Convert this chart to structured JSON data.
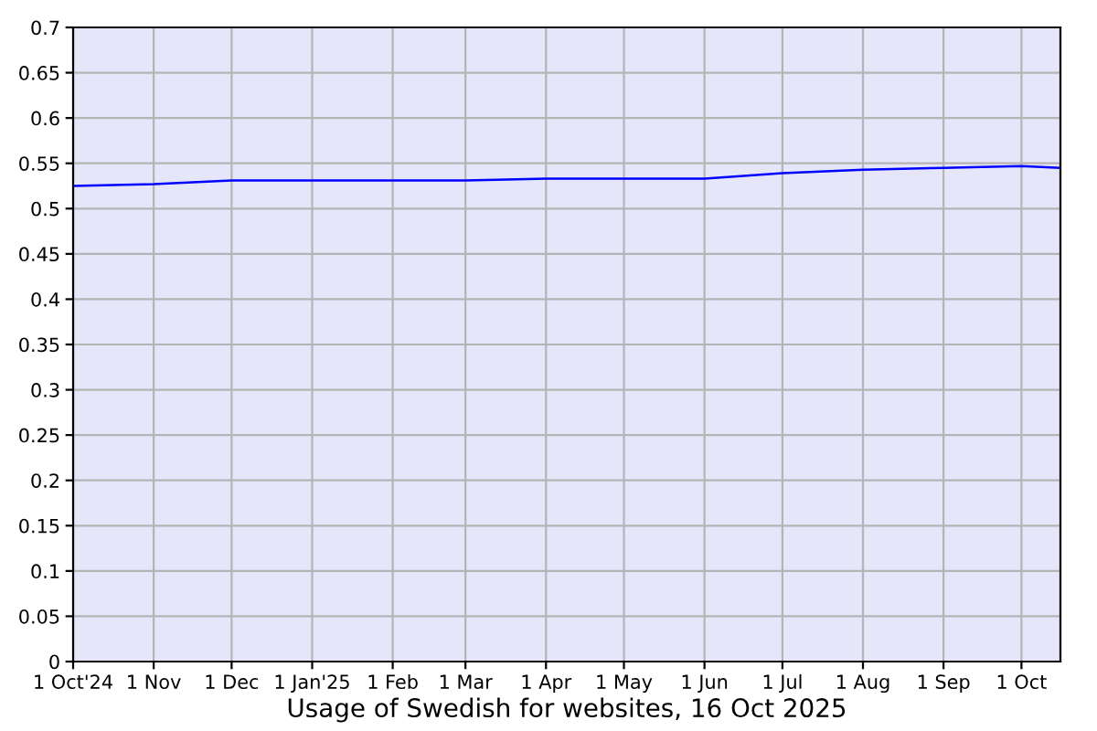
{
  "chart_data": {
    "type": "line",
    "xlabel": "Usage of Swedish for websites, 16 Oct 2025",
    "x": [
      "2024-10-01",
      "2024-11-01",
      "2024-12-01",
      "2025-01-01",
      "2025-02-01",
      "2025-03-01",
      "2025-04-01",
      "2025-05-01",
      "2025-06-01",
      "2025-07-01",
      "2025-08-01",
      "2025-09-01",
      "2025-10-01",
      "2025-10-16"
    ],
    "series": [
      {
        "color": "#0000ff",
        "values": [
          0.525,
          0.527,
          0.531,
          0.531,
          0.531,
          0.531,
          0.533,
          0.533,
          0.533,
          0.539,
          0.543,
          0.545,
          0.547,
          0.545
        ]
      }
    ],
    "xlim": [
      "2024-10-01",
      "2025-10-16"
    ],
    "xticks": [
      {
        "value": "2024-10-01",
        "label": "1 Oct'24"
      },
      {
        "value": "2024-11-01",
        "label": "1 Nov"
      },
      {
        "value": "2024-12-01",
        "label": "1 Dec"
      },
      {
        "value": "2025-01-01",
        "label": "1 Jan'25"
      },
      {
        "value": "2025-02-01",
        "label": "1 Feb"
      },
      {
        "value": "2025-03-01",
        "label": "1 Mar"
      },
      {
        "value": "2025-04-01",
        "label": "1 Apr"
      },
      {
        "value": "2025-05-01",
        "label": "1 May"
      },
      {
        "value": "2025-06-01",
        "label": "1 Jun"
      },
      {
        "value": "2025-07-01",
        "label": "1 Jul"
      },
      {
        "value": "2025-08-01",
        "label": "1 Aug"
      },
      {
        "value": "2025-09-01",
        "label": "1 Sep"
      },
      {
        "value": "2025-10-01",
        "label": "1 Oct"
      }
    ],
    "ylim": [
      0,
      0.7
    ],
    "yticks": [
      0,
      0.05,
      0.1,
      0.15,
      0.2,
      0.25,
      0.3,
      0.35,
      0.4,
      0.45,
      0.5,
      0.55,
      0.6,
      0.65,
      0.7
    ],
    "grid": true,
    "legend": false,
    "marker": "none",
    "line_style": "solid"
  }
}
